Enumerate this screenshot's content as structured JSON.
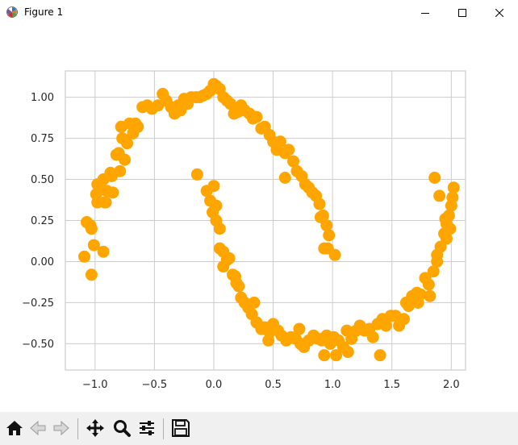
{
  "window": {
    "title": "Figure 1",
    "icons": [
      "matplotlib-icon",
      "minimize-icon",
      "maximize-icon",
      "close-icon"
    ]
  },
  "toolbar": {
    "buttons": [
      "home-icon",
      "back-icon",
      "forward-icon",
      "pan-icon",
      "zoom-icon",
      "configure-subplots-icon",
      "save-icon"
    ]
  },
  "chart_data": {
    "type": "scatter",
    "title": "",
    "xlabel": "",
    "ylabel": "",
    "xlim": [
      -1.25,
      2.12
    ],
    "ylim": [
      -0.66,
      1.16
    ],
    "xticks": [
      -1.0,
      -0.5,
      0.0,
      0.5,
      1.0,
      1.5,
      2.0
    ],
    "yticks": [
      -0.5,
      -0.25,
      0.0,
      0.25,
      0.5,
      0.75,
      1.0
    ],
    "xtick_labels": [
      "−1.0",
      "−0.5",
      "0.0",
      "0.5",
      "1.0",
      "1.5",
      "2.0"
    ],
    "ytick_labels": [
      "−0.50",
      "−0.25",
      "0.00",
      "0.25",
      "0.50",
      "0.75",
      "1.00"
    ],
    "grid": true,
    "marker_color": "#ffa500",
    "series": [
      {
        "x": [
          -1.09,
          -1.07,
          -1.04,
          -1.03,
          -1.01,
          -0.99,
          -0.98,
          -0.98,
          -0.96,
          -0.95,
          -0.93,
          -0.92,
          -0.91,
          -0.9,
          -0.87,
          -0.86,
          -0.85,
          -0.82,
          -0.8,
          -0.78,
          -0.77,
          -0.75,
          -0.73,
          -0.71,
          -0.68,
          -0.66,
          -0.64,
          -0.6,
          -0.56,
          -0.52,
          -0.47,
          -0.43,
          -0.4,
          -0.36,
          -0.33,
          -0.3,
          -0.28,
          -0.25,
          -0.22,
          -0.19,
          -0.15,
          -0.12,
          -0.09,
          -0.06,
          -0.03,
          0.0,
          0.02,
          0.05,
          0.08,
          0.11,
          0.14,
          0.17,
          0.2,
          0.23,
          0.26,
          0.3,
          0.33,
          0.36,
          0.4,
          0.43,
          0.47,
          0.5,
          0.53,
          0.56,
          0.6,
          0.63,
          0.67,
          0.7,
          0.74,
          0.77,
          0.8,
          0.83,
          0.86,
          0.89,
          0.9,
          0.92,
          0.95,
          0.97,
          -1.03,
          -0.93,
          0.93,
          0.96,
          1.02,
          -0.79,
          0.02,
          0.6
        ],
        "y": [
          0.03,
          0.24,
          0.22,
          0.2,
          0.1,
          0.41,
          0.47,
          0.36,
          0.45,
          0.44,
          0.5,
          0.36,
          0.36,
          0.43,
          0.54,
          0.52,
          0.42,
          0.65,
          0.66,
          0.82,
          0.75,
          0.62,
          0.72,
          0.84,
          0.78,
          0.84,
          0.82,
          0.94,
          0.95,
          0.93,
          0.95,
          1.02,
          0.98,
          0.94,
          0.9,
          0.95,
          0.92,
          0.99,
          0.96,
          1.0,
          1.0,
          1.0,
          1.01,
          1.02,
          1.04,
          1.08,
          1.07,
          1.05,
          1.0,
          0.98,
          0.96,
          0.9,
          0.91,
          0.95,
          0.92,
          0.9,
          0.87,
          0.88,
          0.81,
          0.82,
          0.77,
          0.73,
          0.68,
          0.73,
          0.66,
          0.68,
          0.61,
          0.55,
          0.52,
          0.47,
          0.45,
          0.42,
          0.4,
          0.35,
          0.27,
          0.28,
          0.22,
          0.16,
          -0.08,
          0.06,
          0.08,
          0.08,
          0.04,
          0.55,
          0.34,
          0.51
        ]
      },
      {
        "x": [
          -0.14,
          -0.06,
          -0.03,
          -0.01,
          0.02,
          0.05,
          0.08,
          0.11,
          0.13,
          0.16,
          0.18,
          0.21,
          0.23,
          0.26,
          0.29,
          0.32,
          0.36,
          0.4,
          0.43,
          0.47,
          0.5,
          0.54,
          0.57,
          0.61,
          0.65,
          0.69,
          0.73,
          0.76,
          0.8,
          0.84,
          0.88,
          0.91,
          0.95,
          0.98,
          1.01,
          1.05,
          1.09,
          1.12,
          1.16,
          1.2,
          1.23,
          1.27,
          1.31,
          1.34,
          1.38,
          1.42,
          1.45,
          1.49,
          1.53,
          1.56,
          1.6,
          1.64,
          1.67,
          1.71,
          1.74,
          1.78,
          1.81,
          1.85,
          1.88,
          1.91,
          1.94,
          1.96,
          1.98,
          2.0,
          2.01,
          2.02,
          1.86,
          1.95,
          1.99,
          1.96,
          1.88,
          1.9,
          1.62,
          1.72,
          1.82,
          1.03,
          1.13,
          1.4,
          0.93,
          0.72,
          0.46,
          0.34,
          0.05,
          0.0,
          0.08,
          0.19
        ],
        "y": [
          0.53,
          0.43,
          0.37,
          0.3,
          0.25,
          0.2,
          0.06,
          0.01,
          0.02,
          -0.08,
          -0.09,
          -0.15,
          -0.22,
          -0.25,
          -0.28,
          -0.32,
          -0.37,
          -0.41,
          -0.4,
          -0.43,
          -0.38,
          -0.42,
          -0.45,
          -0.48,
          -0.46,
          -0.47,
          -0.5,
          -0.52,
          -0.48,
          -0.45,
          -0.47,
          -0.48,
          -0.45,
          -0.5,
          -0.46,
          -0.48,
          -0.52,
          -0.42,
          -0.47,
          -0.42,
          -0.39,
          -0.42,
          -0.41,
          -0.46,
          -0.38,
          -0.35,
          -0.39,
          -0.33,
          -0.33,
          -0.39,
          -0.35,
          -0.27,
          -0.21,
          -0.19,
          -0.2,
          -0.1,
          -0.14,
          -0.06,
          0.0,
          0.09,
          0.17,
          0.23,
          0.28,
          0.34,
          0.39,
          0.45,
          0.51,
          0.26,
          0.2,
          0.14,
          0.04,
          0.4,
          -0.25,
          -0.25,
          -0.21,
          -0.57,
          -0.55,
          -0.57,
          -0.57,
          -0.41,
          -0.48,
          -0.25,
          0.08,
          0.46,
          -0.03,
          -0.13
        ]
      }
    ]
  }
}
